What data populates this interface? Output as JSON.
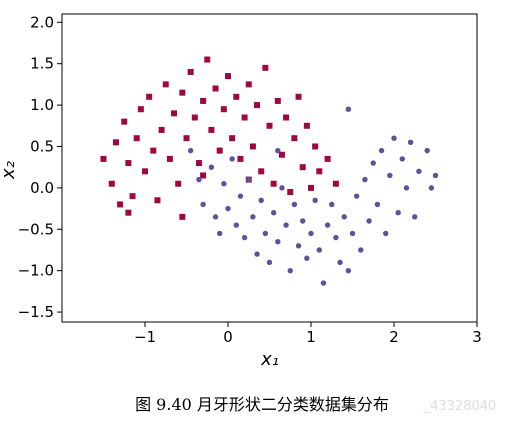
{
  "chart_data": {
    "type": "scatter",
    "x_label": "x₁",
    "y_label": "x₂",
    "caption": "图 9.40 月牙形状二分类数据集分布",
    "watermark": "_43328040",
    "xlim": [
      -2,
      3
    ],
    "ylim": [
      -1.62,
      2.1
    ],
    "xticks": [
      {
        "value": -1,
        "label": "−1"
      },
      0,
      1,
      2,
      3
    ],
    "yticks": [
      {
        "value": -1.5,
        "label": "−1.5"
      },
      {
        "value": -1.0,
        "label": "−1.0"
      },
      {
        "value": -0.5,
        "label": "−0.5"
      },
      {
        "value": 0,
        "label": "0.0"
      },
      {
        "value": 0.5,
        "label": "0.5"
      },
      {
        "value": 1.0,
        "label": "1.0"
      },
      {
        "value": 1.5,
        "label": "1.5"
      },
      {
        "value": 2.0,
        "label": "2.0"
      }
    ],
    "series": [
      {
        "color": "#a0063f",
        "marker": "square",
        "x": [
          -1.5,
          -1.4,
          -1.35,
          -1.3,
          -1.25,
          -1.2,
          -1.15,
          -1.1,
          -1.05,
          -1.0,
          -0.95,
          -0.9,
          -0.85,
          -0.8,
          -0.75,
          -0.7,
          -0.65,
          -0.6,
          -0.55,
          -0.5,
          -0.45,
          -0.4,
          -0.35,
          -0.3,
          -0.25,
          -0.2,
          -0.15,
          -0.1,
          -0.05,
          0.0,
          0.05,
          0.1,
          0.15,
          0.2,
          0.25,
          0.3,
          0.35,
          0.4,
          0.45,
          0.5,
          0.55,
          0.6,
          0.65,
          0.7,
          0.75,
          0.8,
          0.85,
          0.9,
          0.95,
          1.0,
          1.05,
          1.1,
          1.2,
          1.3,
          -0.55,
          -1.2,
          -0.3,
          0.25
        ],
        "values": [
          0.35,
          0.05,
          0.55,
          -0.2,
          0.8,
          0.3,
          -0.1,
          0.6,
          0.95,
          0.2,
          1.1,
          0.45,
          -0.15,
          0.7,
          1.25,
          0.35,
          0.9,
          0.05,
          1.15,
          0.6,
          1.4,
          0.85,
          0.3,
          1.05,
          1.55,
          0.7,
          1.2,
          0.45,
          0.95,
          1.35,
          0.6,
          1.1,
          0.35,
          0.85,
          1.25,
          0.5,
          1.0,
          0.2,
          1.45,
          0.75,
          0.05,
          1.05,
          0.4,
          0.85,
          -0.05,
          0.6,
          1.1,
          0.25,
          0.75,
          0.0,
          0.5,
          0.2,
          0.35,
          0.05,
          -0.35,
          -0.3,
          0.15,
          0.1
        ]
      },
      {
        "color": "#5e509c",
        "marker": "circle",
        "x": [
          -0.45,
          -0.35,
          -0.3,
          -0.2,
          -0.15,
          -0.05,
          0.0,
          0.05,
          0.1,
          0.15,
          0.2,
          0.25,
          0.3,
          0.35,
          0.4,
          0.45,
          0.5,
          0.55,
          0.6,
          0.65,
          0.7,
          0.75,
          0.8,
          0.85,
          0.9,
          0.95,
          1.0,
          1.05,
          1.1,
          1.15,
          1.2,
          1.25,
          1.3,
          1.35,
          1.4,
          1.45,
          1.5,
          1.55,
          1.6,
          1.65,
          1.7,
          1.75,
          1.8,
          1.85,
          1.9,
          1.95,
          2.0,
          2.05,
          2.1,
          2.15,
          2.2,
          2.25,
          2.3,
          2.4,
          2.45,
          2.5,
          1.45,
          0.6,
          -0.1
        ],
        "values": [
          0.45,
          0.1,
          -0.2,
          0.25,
          -0.35,
          0.05,
          -0.25,
          0.35,
          -0.45,
          -0.1,
          -0.6,
          0.1,
          -0.35,
          -0.8,
          -0.15,
          -0.55,
          -0.9,
          -0.3,
          -0.65,
          0.0,
          -0.45,
          -1.0,
          -0.2,
          -0.7,
          -0.4,
          -0.85,
          -0.55,
          -0.15,
          -0.75,
          -1.15,
          -0.45,
          -0.2,
          -0.6,
          -0.9,
          -0.35,
          0.95,
          -0.55,
          -0.1,
          -0.75,
          0.1,
          -0.4,
          0.3,
          -0.2,
          0.45,
          -0.55,
          0.15,
          0.6,
          -0.3,
          0.35,
          0.0,
          0.55,
          -0.35,
          0.2,
          0.45,
          0.0,
          0.15,
          -1.0,
          0.45,
          -0.55
        ]
      }
    ]
  }
}
